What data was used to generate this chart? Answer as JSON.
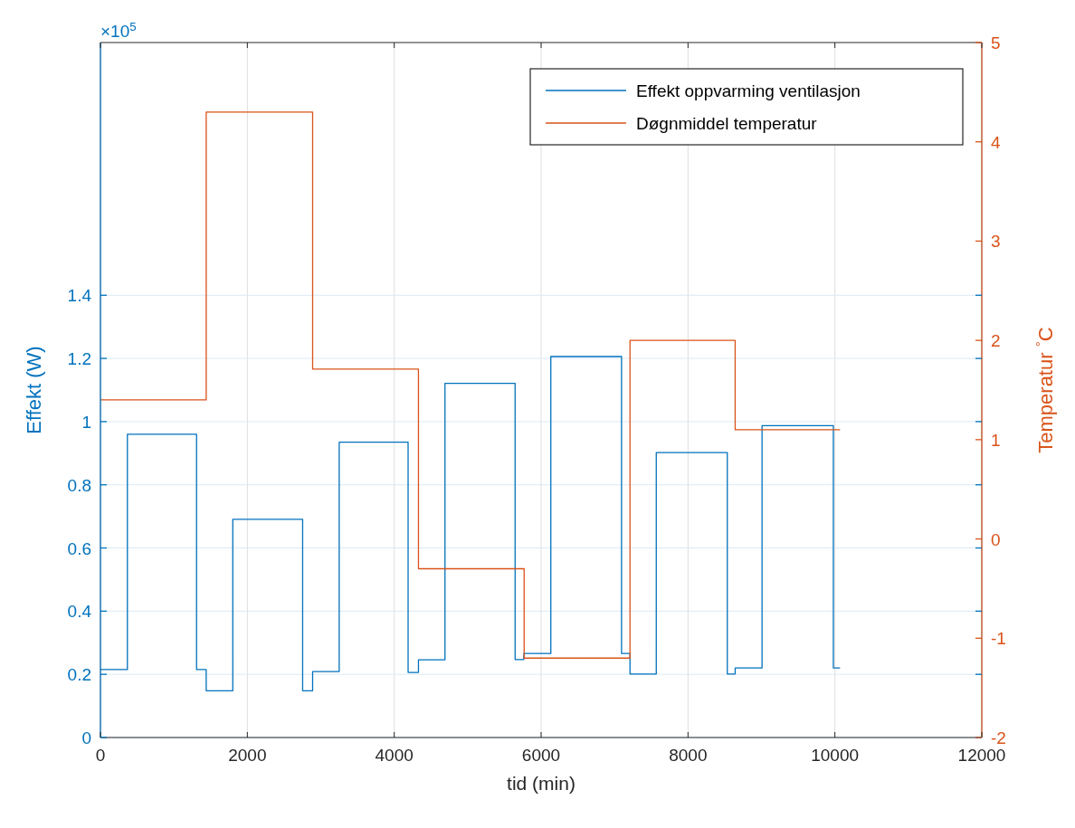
{
  "chart_data": {
    "type": "step",
    "xlabel": "tid (min)",
    "ylabel": "Effekt (W)",
    "y2label": "Temperatur $^{°}$C",
    "annotations": [
      "×10$^{5}$"
    ],
    "xlim": [
      0,
      12000
    ],
    "xticks": [
      0,
      2000,
      4000,
      6000,
      8000,
      10000,
      12000
    ],
    "ylim": [
      0,
      2.2
    ],
    "yticks": [
      0,
      0.2,
      0.4,
      0.6,
      0.8,
      1,
      1.2,
      1.4
    ],
    "y2lim": [
      -2,
      5
    ],
    "y2ticks": [
      -2,
      -1,
      0,
      1,
      2,
      3,
      4,
      5
    ],
    "grid": true,
    "legend": "top right",
    "line_style": "solid",
    "series": [
      {
        "name": "Effekt oppvarming ventilasjon",
        "color": "#0072bd",
        "x": [
          0,
          367,
          1309,
          1440,
          1802,
          2753,
          2889,
          3251,
          4189,
          4330,
          4691,
          5646,
          5765,
          6132,
          7095,
          7210,
          7568,
          8535,
          8642,
          9008,
          9979,
          10070
        ],
        "values": [
          0.215,
          0.96,
          0.215,
          0.148,
          0.691,
          0.148,
          0.209,
          0.935,
          0.206,
          0.246,
          1.121,
          0.247,
          0.266,
          1.206,
          0.266,
          0.201,
          0.902,
          0.201,
          0.22,
          0.987,
          0.22,
          0.22
        ]
      },
      {
        "name": "Døgnmiddel temperatur",
        "color": "#d95319",
        "axis": "y2",
        "x": [
          0,
          1440,
          2889,
          4330,
          5769,
          7210,
          8642,
          10070
        ],
        "values": [
          1.4,
          4.3,
          1.71,
          -0.3,
          -1.2,
          2.0,
          1.1,
          1.1
        ]
      }
    ]
  }
}
